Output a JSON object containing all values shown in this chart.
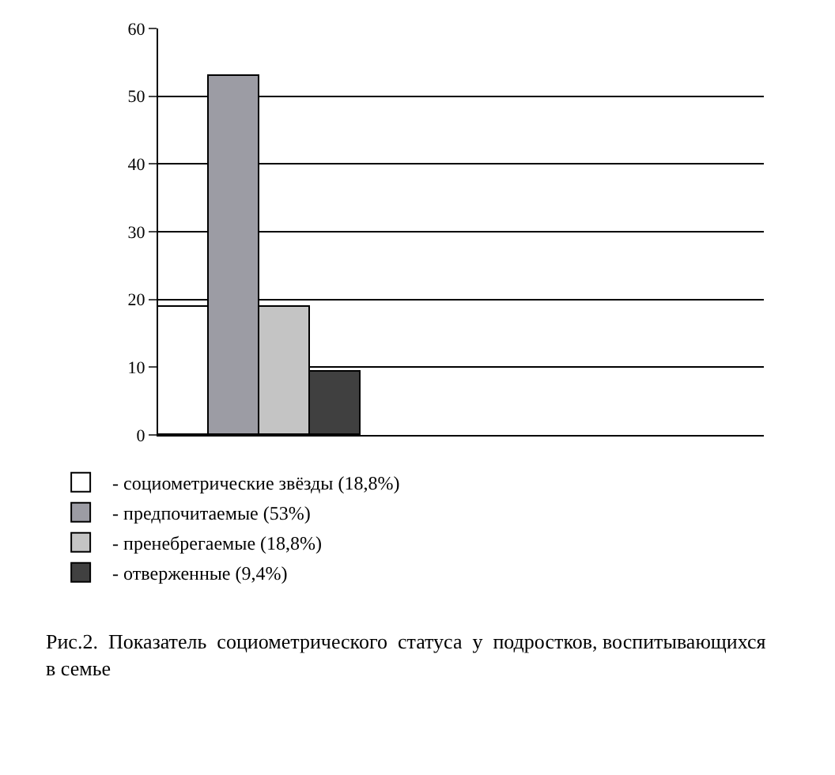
{
  "chart_data": {
    "type": "bar",
    "categories": [
      null
    ],
    "series": [
      {
        "name": "- социометрические звёзды (18,8%)",
        "color": "#ffffff",
        "values": [
          18.8
        ]
      },
      {
        "name": "- предпочитаемые (53%)",
        "color": "#9c9ca4",
        "values": [
          53
        ]
      },
      {
        "name": "- пренебрегаемые (18,8%)",
        "color": "#c4c4c4",
        "values": [
          18.8
        ]
      },
      {
        "name": "- отверженные (9,4%)",
        "color": "#404040",
        "values": [
          9.4
        ]
      }
    ],
    "ylim": [
      0,
      60
    ],
    "yticks": [
      0,
      10,
      20,
      30,
      40,
      50,
      60
    ],
    "grid": "y",
    "legend": "bottom left",
    "annotations": [
      "Рис.2.  Показатель  социометрического  статуса  у  подростков, воспитывающихся в семье"
    ]
  }
}
